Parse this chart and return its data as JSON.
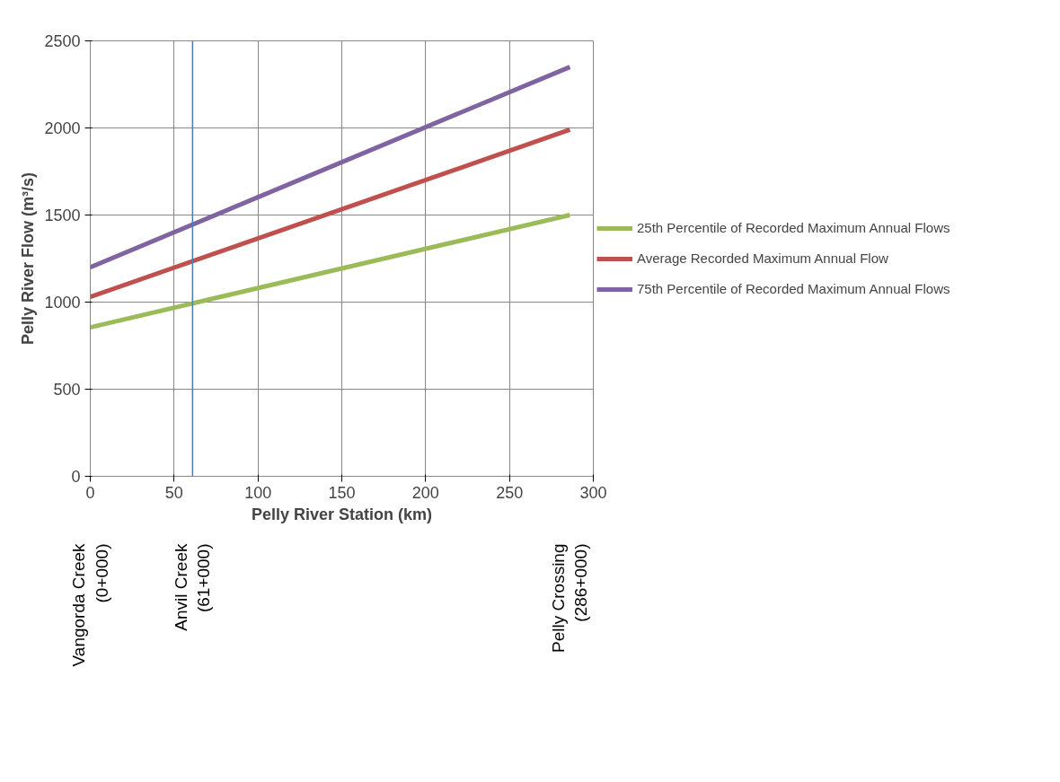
{
  "chart_data": {
    "type": "line",
    "xlabel": "Pelly River Station (km)",
    "ylabel": "Pelly River Flow (m³/s)",
    "x": [
      0,
      286
    ],
    "series": [
      {
        "name": "25th Percentile of Recorded Maximum Annual Flows",
        "color": "#9bbb59",
        "values": [
          855,
          1500
        ]
      },
      {
        "name": "Average Recorded Maximum Annual Flow",
        "color": "#c0504d",
        "values": [
          1030,
          1990
        ]
      },
      {
        "name": "75th Percentile of Recorded Maximum Annual Flows",
        "color": "#8064a2",
        "values": [
          1200,
          2350
        ]
      }
    ],
    "xlim": [
      0,
      300
    ],
    "xticks": [
      0,
      50,
      100,
      150,
      200,
      250,
      300
    ],
    "ylim": [
      0,
      2500
    ],
    "yticks": [
      0,
      500,
      1000,
      1500,
      2000,
      2500
    ],
    "grid": true,
    "legend": "right",
    "ref_lines": [
      {
        "axis": "x",
        "value": 61,
        "color": "#4a7ebb"
      }
    ],
    "annotations": [
      "Vangorda Creek (0+000)",
      "Anvil Creek (61+000)",
      "Pelly Crossing (286+000)"
    ]
  }
}
